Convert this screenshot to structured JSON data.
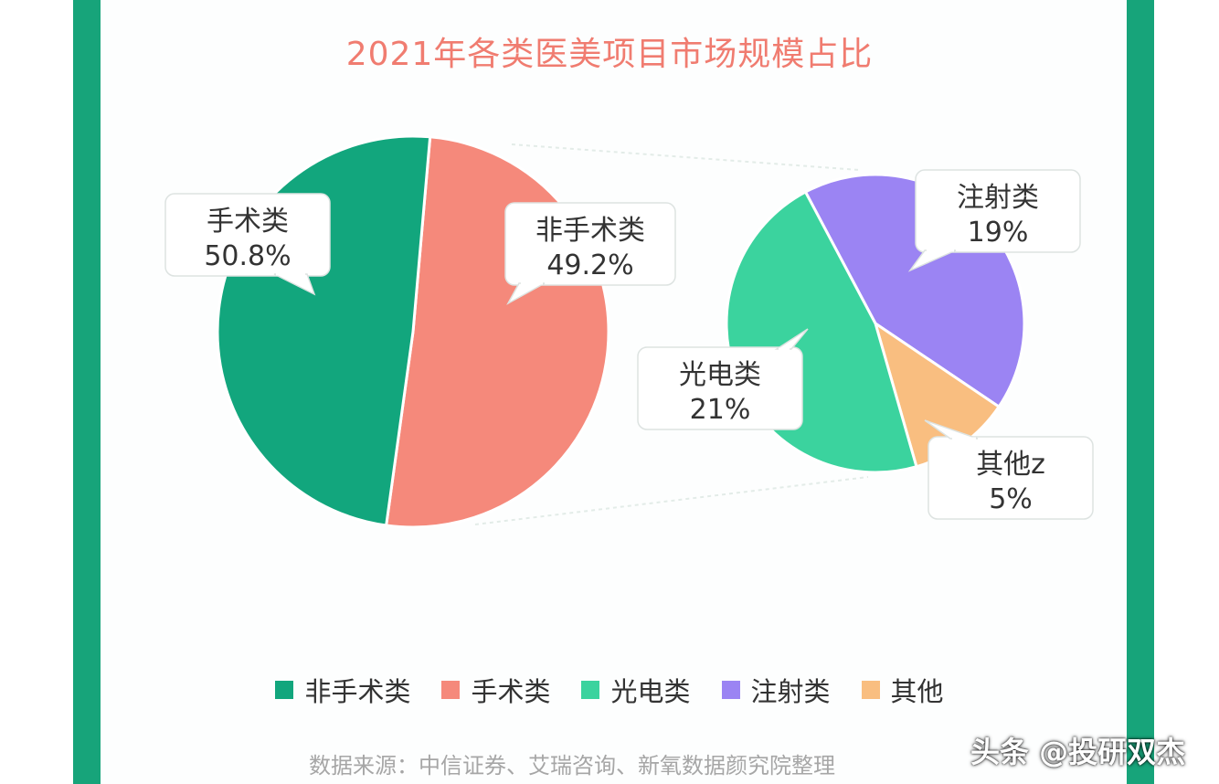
{
  "chart_data": {
    "type": "pie",
    "title": "2021年各类医美项目市场规模占比",
    "charts": [
      {
        "slices": [
          {
            "label": "手术类",
            "value": 50.8,
            "value_text": "50.8%",
            "color": "#f5897b"
          },
          {
            "label": "非手术类",
            "value": 49.2,
            "value_text": "49.2%",
            "color": "#12a67d"
          }
        ]
      },
      {
        "slices": [
          {
            "label": "注射类",
            "value": 19,
            "value_text": "19%",
            "color": "#9b84f3"
          },
          {
            "label": "其他z",
            "value": 5,
            "value_text": "5%",
            "color": "#f9be80"
          },
          {
            "label": "光电类",
            "value": 21,
            "value_text": "21%",
            "color": "#3bd39e"
          }
        ]
      }
    ],
    "legend": [
      {
        "label": "非手术类",
        "color": "#12a67d"
      },
      {
        "label": "手术类",
        "color": "#f5897b"
      },
      {
        "label": "光电类",
        "color": "#3bd39e"
      },
      {
        "label": "注射类",
        "color": "#9b84f3"
      },
      {
        "label": "其他",
        "color": "#f9be80"
      }
    ],
    "legend_position": "bottom"
  },
  "source_text": "数据来源：中信证券、艾瑞咨询、新氧数据颜究院整理",
  "watermark": "头条 @投研双杰",
  "colors": {
    "frame": "#17a47a",
    "title": "#f07c70"
  }
}
